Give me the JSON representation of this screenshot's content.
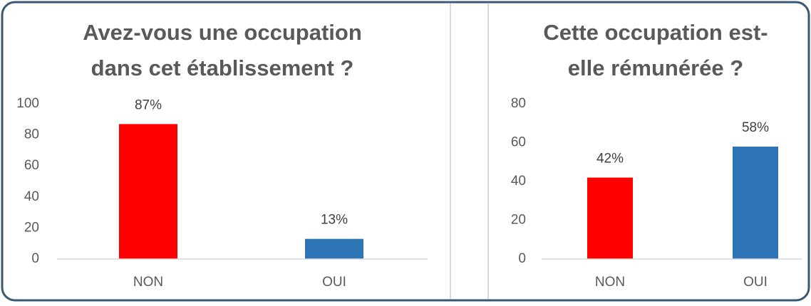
{
  "chart_data": [
    {
      "type": "bar",
      "title": [
        "Avez-vous une occupation",
        "dans cet établissement ?"
      ],
      "categories": [
        "NON",
        "OUI"
      ],
      "values": [
        87,
        13
      ],
      "value_labels": [
        "87%",
        "13%"
      ],
      "colors": [
        "#ff0000",
        "#2e75b6"
      ],
      "ylim": [
        0,
        100
      ],
      "yticks": [
        0,
        20,
        40,
        60,
        80,
        100
      ],
      "grid": false
    },
    {
      "type": "bar",
      "title": [
        "Cette occupation est-",
        "elle rémunérée ?"
      ],
      "categories": [
        "NON",
        "OUI"
      ],
      "values": [
        42,
        58
      ],
      "value_labels": [
        "42%",
        "58%"
      ],
      "colors": [
        "#ff0000",
        "#2e75b6"
      ],
      "ylim": [
        0,
        80
      ],
      "yticks": [
        0,
        20,
        40,
        60,
        80
      ],
      "grid": false
    }
  ]
}
